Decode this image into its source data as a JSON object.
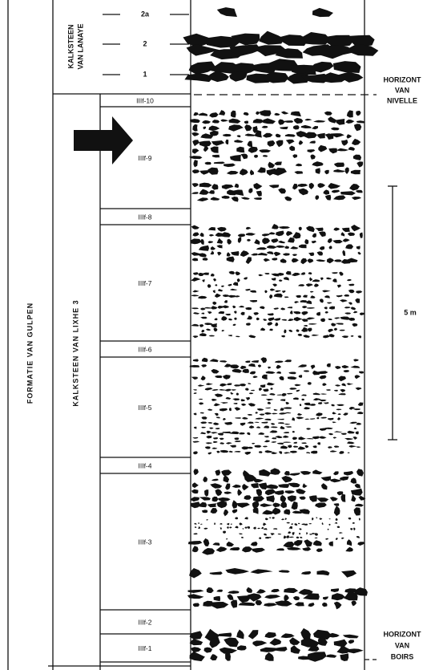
{
  "formation": "FORMATIE VAN GULPEN",
  "members": [
    {
      "name_lines": [
        "KALKSTEEN",
        "VAN LANAYE"
      ],
      "units": [
        "2a",
        "2",
        "1"
      ]
    },
    {
      "name": "KALKSTEEN VAN LIXHE 3",
      "units": [
        "IIIf-10",
        "IIIf-9",
        "IIIf-8",
        "IIIf-7",
        "IIIf-6",
        "IIIf-5",
        "IIIf-4",
        "IIIf-3",
        "IIIf-2",
        "IIIf-1"
      ]
    }
  ],
  "horizons": [
    {
      "lines": [
        "HORIZONT",
        "VAN",
        "NIVELLE"
      ]
    },
    {
      "lines": [
        "HORIZONT",
        "VAN",
        "BOIRS"
      ]
    }
  ],
  "scale_bar": "5 m"
}
